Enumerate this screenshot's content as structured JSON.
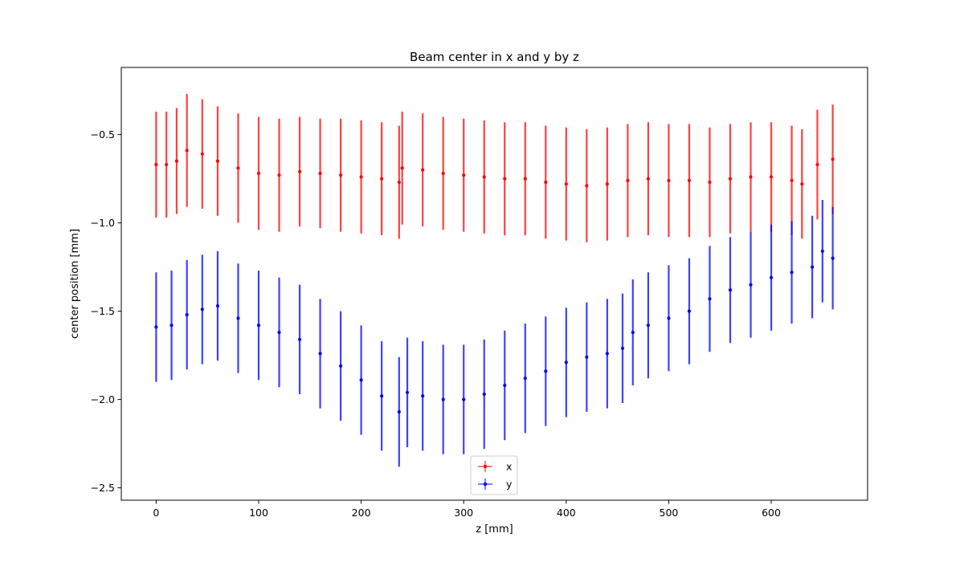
{
  "chart_data": {
    "type": "scatter",
    "title": "Beam center in x and y by z",
    "xlabel": "z [mm]",
    "ylabel": "center position [mm]",
    "xlim": [
      -34,
      694
    ],
    "ylim": [
      -2.57,
      -0.12
    ],
    "xticks": [
      0,
      100,
      200,
      300,
      400,
      500,
      600
    ],
    "xtick_labels": [
      "0",
      "100",
      "200",
      "300",
      "400",
      "500",
      "600"
    ],
    "yticks": [
      -2.5,
      -2.0,
      -1.5,
      -1.0,
      -0.5
    ],
    "ytick_labels": [
      "−2.5",
      "−2.0",
      "−1.5",
      "−1.0",
      "−0.5"
    ],
    "grid": false,
    "legend_position": "lower center",
    "series": [
      {
        "name": "x",
        "color": "#ff0000",
        "points": [
          [
            0,
            -0.67,
            0.3
          ],
          [
            10,
            -0.67,
            0.3
          ],
          [
            20,
            -0.65,
            0.3
          ],
          [
            30,
            -0.59,
            0.32
          ],
          [
            45,
            -0.61,
            0.31
          ],
          [
            60,
            -0.65,
            0.31
          ],
          [
            80,
            -0.69,
            0.31
          ],
          [
            100,
            -0.72,
            0.32
          ],
          [
            120,
            -0.73,
            0.32
          ],
          [
            140,
            -0.71,
            0.31
          ],
          [
            160,
            -0.72,
            0.31
          ],
          [
            180,
            -0.73,
            0.32
          ],
          [
            200,
            -0.74,
            0.32
          ],
          [
            220,
            -0.75,
            0.32
          ],
          [
            237,
            -0.77,
            0.32
          ],
          [
            240,
            -0.69,
            0.32
          ],
          [
            260,
            -0.7,
            0.32
          ],
          [
            280,
            -0.72,
            0.32
          ],
          [
            300,
            -0.73,
            0.32
          ],
          [
            320,
            -0.74,
            0.32
          ],
          [
            340,
            -0.75,
            0.32
          ],
          [
            360,
            -0.75,
            0.32
          ],
          [
            380,
            -0.77,
            0.32
          ],
          [
            400,
            -0.78,
            0.32
          ],
          [
            420,
            -0.79,
            0.32
          ],
          [
            440,
            -0.78,
            0.32
          ],
          [
            460,
            -0.76,
            0.32
          ],
          [
            480,
            -0.75,
            0.32
          ],
          [
            500,
            -0.76,
            0.32
          ],
          [
            520,
            -0.76,
            0.32
          ],
          [
            540,
            -0.77,
            0.31
          ],
          [
            560,
            -0.75,
            0.31
          ],
          [
            580,
            -0.74,
            0.31
          ],
          [
            600,
            -0.74,
            0.31
          ],
          [
            620,
            -0.76,
            0.31
          ],
          [
            630,
            -0.78,
            0.31
          ],
          [
            645,
            -0.67,
            0.31
          ],
          [
            660,
            -0.64,
            0.31
          ]
        ]
      },
      {
        "name": "y",
        "color": "#0000ff",
        "points": [
          [
            0,
            -1.59,
            0.31
          ],
          [
            15,
            -1.58,
            0.31
          ],
          [
            30,
            -1.52,
            0.31
          ],
          [
            45,
            -1.49,
            0.31
          ],
          [
            60,
            -1.47,
            0.31
          ],
          [
            80,
            -1.54,
            0.31
          ],
          [
            100,
            -1.58,
            0.31
          ],
          [
            120,
            -1.62,
            0.31
          ],
          [
            140,
            -1.66,
            0.31
          ],
          [
            160,
            -1.74,
            0.31
          ],
          [
            180,
            -1.81,
            0.31
          ],
          [
            200,
            -1.89,
            0.31
          ],
          [
            220,
            -1.98,
            0.31
          ],
          [
            237,
            -2.07,
            0.31
          ],
          [
            245,
            -1.96,
            0.31
          ],
          [
            260,
            -1.98,
            0.31
          ],
          [
            280,
            -2.0,
            0.31
          ],
          [
            300,
            -2.0,
            0.31
          ],
          [
            320,
            -1.97,
            0.31
          ],
          [
            340,
            -1.92,
            0.31
          ],
          [
            360,
            -1.88,
            0.31
          ],
          [
            380,
            -1.84,
            0.31
          ],
          [
            400,
            -1.79,
            0.31
          ],
          [
            420,
            -1.76,
            0.31
          ],
          [
            440,
            -1.74,
            0.31
          ],
          [
            455,
            -1.71,
            0.31
          ],
          [
            465,
            -1.62,
            0.3
          ],
          [
            480,
            -1.58,
            0.3
          ],
          [
            500,
            -1.54,
            0.3
          ],
          [
            520,
            -1.5,
            0.3
          ],
          [
            540,
            -1.43,
            0.3
          ],
          [
            560,
            -1.38,
            0.3
          ],
          [
            580,
            -1.35,
            0.3
          ],
          [
            600,
            -1.31,
            0.3
          ],
          [
            620,
            -1.28,
            0.29
          ],
          [
            640,
            -1.25,
            0.29
          ],
          [
            650,
            -1.16,
            0.29
          ],
          [
            660,
            -1.2,
            0.29
          ]
        ]
      }
    ]
  }
}
